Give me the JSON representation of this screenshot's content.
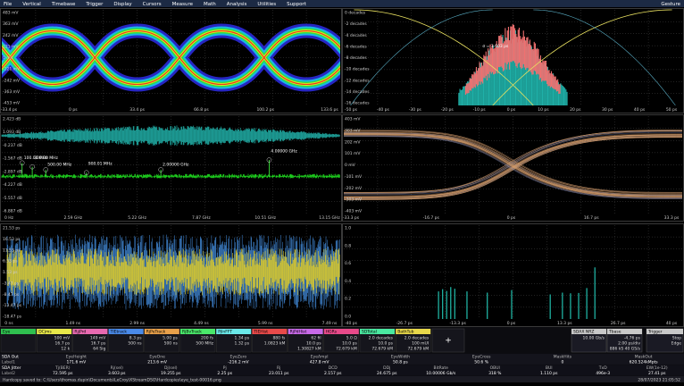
{
  "menu": {
    "items": [
      "File",
      "Vertical",
      "Timebase",
      "Trigger",
      "Display",
      "Cursors",
      "Measure",
      "Math",
      "Analysis",
      "Utilities",
      "Support"
    ],
    "right": "Gesture"
  },
  "panels": [
    {
      "y_labels": [
        "483 mV",
        "363 mV",
        "242 mV",
        "121 mV",
        "0 mV",
        "-121 mV",
        "-242 mV",
        "-363 mV",
        "-453 mV"
      ],
      "x_labels": [
        "-33.4 ps",
        "0 ps",
        "33.4 ps",
        "66.8 ps",
        "100.2 ps",
        "133.6 ps"
      ]
    },
    {
      "y_labels": [
        "0 decades",
        "-2 decades",
        "-4 decades",
        "-6 decades",
        "-8 decades",
        "-10 decades",
        "-12 decades",
        "-14 decades",
        "-16 decades"
      ],
      "x_labels": [
        "-50 ps",
        "-40 ps",
        "-30 ps",
        "-20 ps",
        "-10 ps",
        "0 ps",
        "10 ps",
        "20 ps",
        "30 ps",
        "40 ps",
        "50 ps"
      ],
      "annotations": [
        "σ = 3.603 ps"
      ]
    },
    {
      "y_labels": [
        "2.423 dB",
        "1.093 dB",
        "-0.237 dB",
        "-1.567 dB",
        "-2.897 dB",
        "-4.227 dB",
        "-5.557 dB",
        "-6.887 dB"
      ],
      "x_labels": [
        "0 Hz",
        "2.59 GHz",
        "5.22 GHz",
        "7.87 GHz",
        "10.51 GHz",
        "13.15 GHz"
      ],
      "annotations": [
        "100.00 MHz",
        "300.00 MHz",
        "500.00 MHz",
        "900.01 MHz",
        "2.00000 GHz",
        "4.00000 GHz"
      ]
    },
    {
      "y_labels": [
        "403 mV",
        "303 mV",
        "202 mV",
        "101 mV",
        "0 mV",
        "-101 mV",
        "-202 mV",
        "-303 mV",
        "-403 mV"
      ],
      "x_labels": [
        "-33.3 ps",
        "-16.7 ps",
        "0 ps",
        "16.7 ps",
        "33.3 ps"
      ]
    },
    {
      "y_labels": [
        "21.53 ps",
        "16.53 ps",
        "11.53 ps",
        "6.53 ps",
        "1.53 ps",
        "-3.47 ps",
        "-8.47 ps",
        "-13.47 ps",
        "-18.47 ps"
      ],
      "x_labels": [
        "0 ns",
        "1.49 ns",
        "2.99 ns",
        "4.49 ns",
        "5.99 ns",
        "7.49 ns"
      ]
    },
    {
      "y_labels": [
        "1.0",
        "0.8",
        "0.6",
        "0.4",
        "0.2",
        "0.0"
      ],
      "x_labels": [
        "-40 ps",
        "-26.7 ps",
        "-13.3 ps",
        "0 ps",
        "13.3 ps",
        "26.7 ps",
        "40 ps"
      ]
    }
  ],
  "descriptors": [
    {
      "label": "Eye",
      "color": "#2fbf4f"
    },
    {
      "label": "DCjms",
      "color": "#e8e84a",
      "lines": [
        "500 mV",
        "16.7 ps",
        "12 k"
      ]
    },
    {
      "label": "RjjPrd",
      "color": "#e86ab0",
      "lines": [
        "149 mV",
        "16.7 ps",
        "64 Sig"
      ]
    },
    {
      "label": "TIEtrack",
      "color": "#4a8ae8",
      "lines": [
        "8.3 ps",
        "500 ns"
      ]
    },
    {
      "label": "RjPeTrack",
      "color": "#e8a04a",
      "lines": [
        "5.00 ps",
        "500 ns"
      ]
    },
    {
      "label": "RjBvTrack",
      "color": "#4ae86a",
      "lines": [
        "200 fs",
        "500 MHz"
      ]
    },
    {
      "label": "PjlnFFT",
      "color": "#6ae8e8",
      "lines": [
        "1.34 ps",
        "1.32 ps"
      ]
    },
    {
      "label": "TIEHist",
      "color": "#e84a4a",
      "lines": [
        "880 fs",
        "1.0823 kM"
      ]
    },
    {
      "label": "RjPdHist",
      "color": "#c86ae8",
      "lines": [
        "62 fil",
        "10.0 ps",
        "1.30827 kM"
      ]
    },
    {
      "label": "HGRs",
      "color": "#e84a8a",
      "lines": [
        "5.0 Ω",
        "10.0 ps",
        "72.679 kM"
      ]
    },
    {
      "label": "SDTotal",
      "color": "#4ae8a0",
      "lines": [
        "2.0 decades",
        "10.0 ps",
        "72.679 kM"
      ]
    },
    {
      "label": "BathTub",
      "color": "#e8d84a",
      "lines": [
        "2.0 decades",
        "100 mUI",
        "72.679 kM"
      ]
    }
  ],
  "status_boxes": [
    {
      "label": "SDAX NRZ",
      "lines": [
        "10.00 Gb/s"
      ]
    },
    {
      "label": "Tbase",
      "lines": [
        "-4.76 ps",
        "2.00 ps/div",
        "886 kS 40 GS/s"
      ]
    },
    {
      "label": "Trigger",
      "lines": [
        "Stop",
        "Edge"
      ]
    }
  ],
  "add_button": "+",
  "measurements": [
    {
      "name": "SDA Out",
      "sub": "Label1",
      "columns": [
        {
          "label": "EyeHeight",
          "value": "171.6 mV"
        },
        {
          "label": "EyeOne",
          "value": "213.6 mV"
        },
        {
          "label": "EyeZero",
          "value": "-216.2 mV"
        },
        {
          "label": "EyeAmpl",
          "value": "427.8 mV"
        },
        {
          "label": "EyeWidth",
          "value": "50.8 ps"
        },
        {
          "label": "EyeCross",
          "value": "50.6 %"
        },
        {
          "label": "MaskHits",
          "value": "0"
        },
        {
          "label": "MaskOut",
          "value": "620.524kMpts"
        }
      ]
    },
    {
      "name": "SDA Jitter",
      "sub": "Label2",
      "columns": [
        {
          "label": "Tj(BER)",
          "value": "72.595 ps"
        },
        {
          "label": "Rj(sel)",
          "value": "3.603 ps"
        },
        {
          "label": "Dj(sel)",
          "value": "19.255 ps"
        },
        {
          "label": "Pj",
          "value": "2.25 ps"
        },
        {
          "label": "Rj",
          "value": "23.011 ps"
        },
        {
          "label": "DCD",
          "value": "2.157 ps"
        },
        {
          "label": "DDj",
          "value": "24.675 ps"
        },
        {
          "label": "BitRate",
          "value": "10.00006 Gb/s"
        },
        {
          "label": "OBUI",
          "value": "318 %"
        },
        {
          "label": "BUI",
          "value": "1.110 ps"
        },
        {
          "label": "TxD",
          "value": "496e-3"
        },
        {
          "label": "EW(1e-12)",
          "value": "27.41 ps"
        }
      ]
    }
  ],
  "statusbar": {
    "message": "Hardcopy saved to: C:\\Users\\thomas.dupin\\Documents\\LeCroy\\XStreamDSO\\Hardcopies\\eye_test-00016.png",
    "time": "28/07/2023 21:05:52"
  }
}
